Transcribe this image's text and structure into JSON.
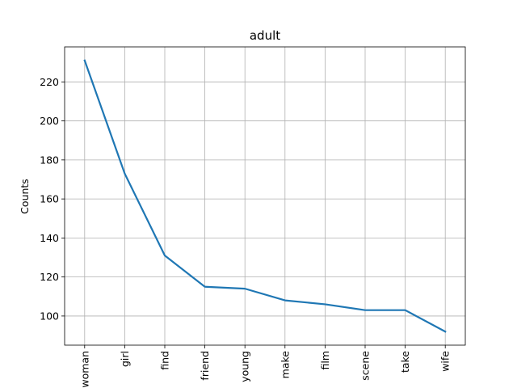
{
  "chart_data": {
    "type": "line",
    "title": "adult",
    "xlabel": "",
    "ylabel": "Counts",
    "categories": [
      "woman",
      "girl",
      "find",
      "friend",
      "young",
      "make",
      "film",
      "scene",
      "take",
      "wife"
    ],
    "series": [
      {
        "values": [
          231,
          173,
          131,
          115,
          114,
          108,
          106,
          103,
          103,
          92
        ]
      }
    ],
    "yticks": [
      100,
      120,
      140,
      160,
      180,
      200,
      220
    ],
    "ylim": [
      85.05,
      237.95
    ],
    "grid": true,
    "colors": {
      "line": "#1f77b4",
      "grid": "#b0b0b0",
      "axes": "#000000"
    }
  }
}
